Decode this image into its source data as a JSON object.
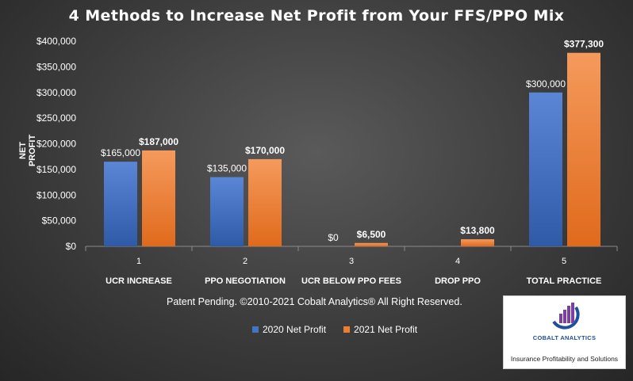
{
  "chart_data": {
    "type": "bar",
    "title": "4 Methods  to Increase  Net Profit  from Your  FFS/PPO Mix",
    "ylabel": "NET PROFIT",
    "xlabel": "",
    "ylim": [
      0,
      400000
    ],
    "yticks": [
      "$0",
      "$50,000",
      "$100,000",
      "$150,000",
      "$200,000",
      "$250,000",
      "$300,000",
      "$350,000",
      "$400,000"
    ],
    "categories": [
      "1",
      "2",
      "3",
      "4",
      "5"
    ],
    "category_labels": [
      "UCR INCREASE",
      "PPO NEGOTIATION",
      "UCR BELOW PPO FEES",
      "DROP PPO",
      "TOTAL PRACTICE"
    ],
    "series": [
      {
        "name": "2020 Net Profit",
        "color": "#4472c4",
        "values": [
          165000,
          135000,
          0,
          null,
          300000
        ],
        "labels": [
          "$165,000",
          "$135,000",
          "$0",
          "",
          "$300,000"
        ],
        "label_bold": false
      },
      {
        "name": "2021  Net Profit",
        "color": "#ed7d31",
        "values": [
          187000,
          170000,
          6500,
          13800,
          377300
        ],
        "labels": [
          "$187,000",
          "$170,000",
          "$6,500",
          "$13,800",
          "$377,300"
        ],
        "label_bold": true
      }
    ],
    "grid": false,
    "legend": "bottom"
  },
  "footer": "Patent Pending. ©2010-2021 Cobalt Analytics® All Right Reserved.",
  "logo": {
    "name": "COBALT ANALYTICS",
    "tagline": "Insurance Profitability and Solutions",
    "icon": "cobalt-analytics-logo-icon"
  }
}
